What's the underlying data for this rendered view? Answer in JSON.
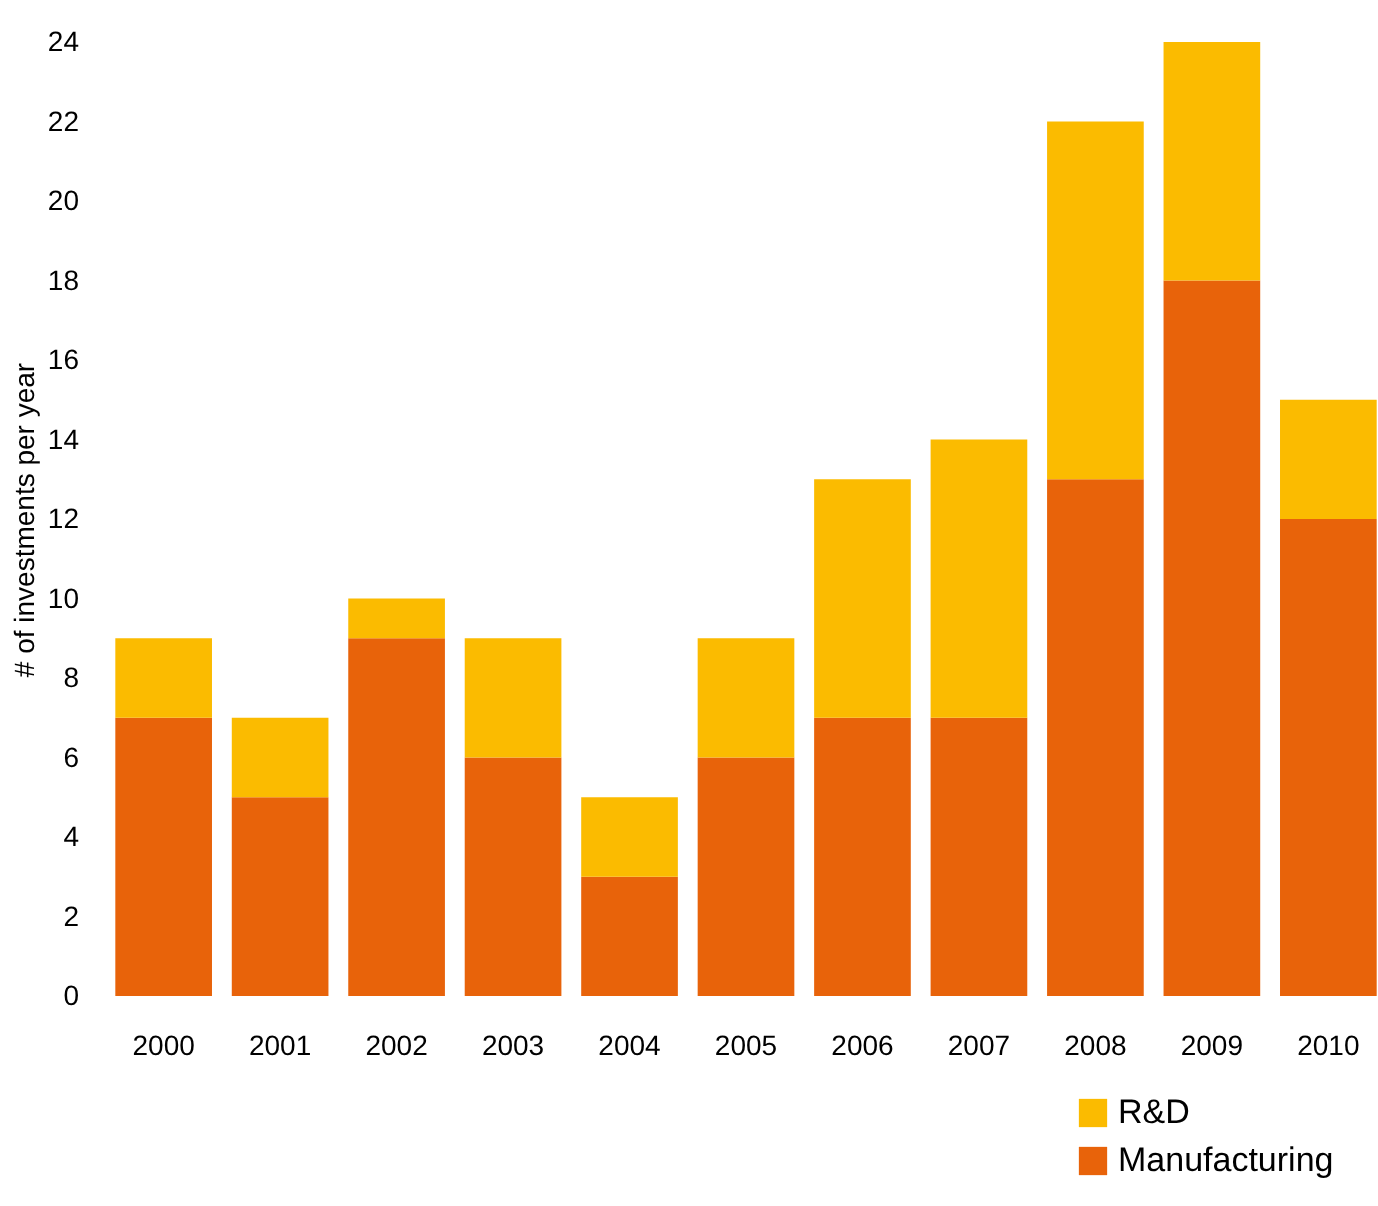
{
  "chart_data": {
    "type": "bar",
    "stacked": true,
    "ylabel": "# of investments per year",
    "categories": [
      "2000",
      "2001",
      "2002",
      "2003",
      "2004",
      "2005",
      "2006",
      "2007",
      "2008",
      "2009",
      "2010"
    ],
    "series": [
      {
        "name": "Manufacturing",
        "color": "#e8630a",
        "values": [
          7,
          5,
          9,
          6,
          3,
          6,
          7,
          7,
          13,
          18,
          12
        ]
      },
      {
        "name": "R&D",
        "color": "#fbbb00",
        "values": [
          2,
          2,
          1,
          3,
          2,
          3,
          6,
          7,
          9,
          6,
          3
        ]
      }
    ],
    "ylim": [
      0,
      24
    ],
    "yticks": [
      0,
      2,
      4,
      6,
      8,
      10,
      12,
      14,
      16,
      18,
      20,
      22,
      24
    ],
    "grid": false,
    "legend": "bottom right"
  }
}
